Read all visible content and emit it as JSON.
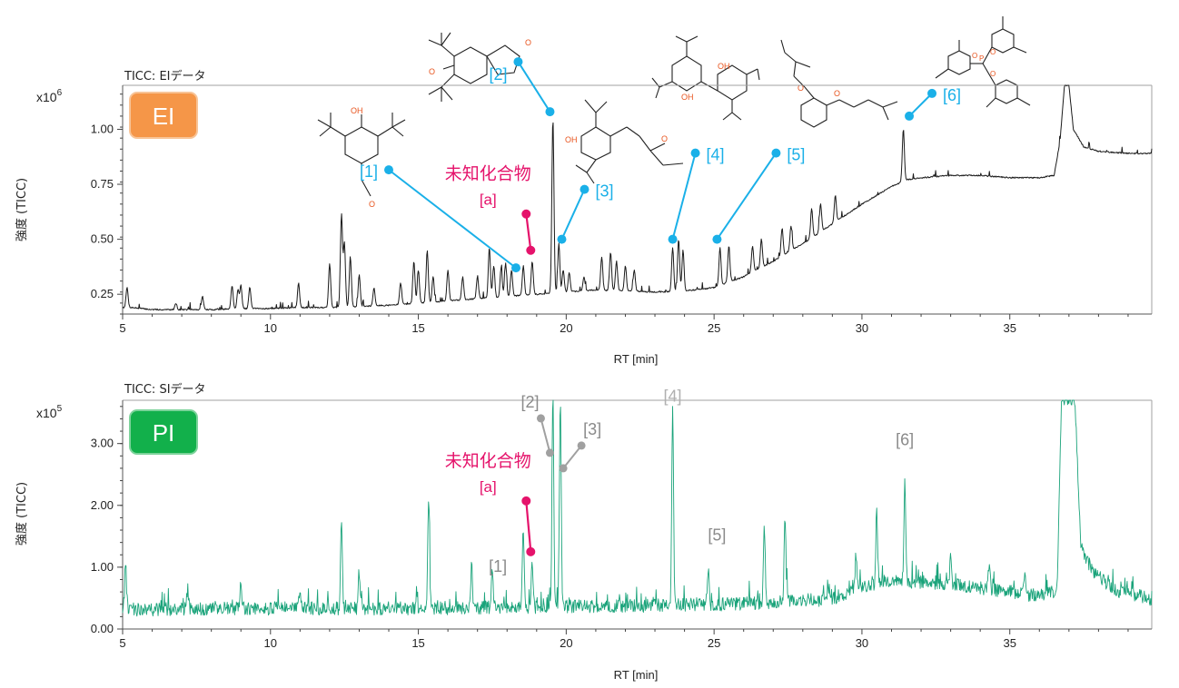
{
  "colors": {
    "ei_trace": "#1a1a1a",
    "pi_trace": "#1aa37a",
    "ei_badge": "#f59648",
    "pi_badge": "#12b04b",
    "ei_marker": "#1ab0e8",
    "pi_marker": "#a0a0a0",
    "unknown": "#e5136b",
    "frame": "#a0a0a0",
    "molecule_bond": "#222222",
    "molecule_hetero": "#e8541e"
  },
  "chart_data": [
    {
      "type": "line",
      "panel": "EI",
      "title": "TICC: EIデータ",
      "badge": "EI",
      "xlabel": "RT [min]",
      "ylabel": "強度 (TICC)",
      "multiplier_base": "x10",
      "multiplier_exp": "6",
      "xlim": [
        5,
        39.8
      ],
      "ylim": [
        0.16,
        1.2
      ],
      "xticks": [
        "5",
        "10",
        "15",
        "20",
        "25",
        "30",
        "35"
      ],
      "yticks": [
        "0.25",
        "0.50",
        "0.75",
        "1.00"
      ],
      "ytick_values": [
        0.25,
        0.5,
        0.75,
        1.0
      ],
      "baseline": [
        [
          5.0,
          0.19
        ],
        [
          5.3,
          0.19
        ],
        [
          6,
          0.18
        ],
        [
          7,
          0.18
        ],
        [
          8,
          0.18
        ],
        [
          9,
          0.185
        ],
        [
          10,
          0.185
        ],
        [
          11,
          0.19
        ],
        [
          12,
          0.19
        ],
        [
          13,
          0.195
        ],
        [
          14,
          0.2
        ],
        [
          15,
          0.21
        ],
        [
          16,
          0.22
        ],
        [
          17,
          0.23
        ],
        [
          18,
          0.24
        ],
        [
          19,
          0.25
        ],
        [
          20,
          0.26
        ],
        [
          21,
          0.27
        ],
        [
          22,
          0.265
        ],
        [
          23,
          0.26
        ],
        [
          24,
          0.265
        ],
        [
          25,
          0.28
        ],
        [
          26,
          0.33
        ],
        [
          27,
          0.4
        ],
        [
          28,
          0.48
        ],
        [
          29,
          0.57
        ],
        [
          30,
          0.66
        ],
        [
          30.5,
          0.7
        ],
        [
          31,
          0.74
        ],
        [
          31.5,
          0.77
        ],
        [
          32,
          0.78
        ],
        [
          33,
          0.79
        ],
        [
          34,
          0.79
        ],
        [
          35,
          0.78
        ],
        [
          36,
          0.78
        ],
        [
          36.5,
          0.79
        ],
        [
          36.7,
          0.95
        ],
        [
          36.85,
          1.2
        ],
        [
          37.0,
          1.2
        ],
        [
          37.15,
          1.0
        ],
        [
          37.5,
          0.92
        ],
        [
          38,
          0.9
        ],
        [
          39,
          0.89
        ],
        [
          39.8,
          0.89
        ]
      ],
      "peaks": [
        [
          5.15,
          0.28
        ],
        [
          6.8,
          0.21
        ],
        [
          7.7,
          0.24
        ],
        [
          8.7,
          0.29
        ],
        [
          8.9,
          0.27
        ],
        [
          9.0,
          0.29
        ],
        [
          9.3,
          0.28
        ],
        [
          10.95,
          0.3
        ],
        [
          12.0,
          0.39
        ],
        [
          12.4,
          0.61
        ],
        [
          12.5,
          0.48
        ],
        [
          12.7,
          0.42
        ],
        [
          13.0,
          0.34
        ],
        [
          13.5,
          0.28
        ],
        [
          14.4,
          0.3
        ],
        [
          14.85,
          0.4
        ],
        [
          15.0,
          0.36
        ],
        [
          15.3,
          0.45
        ],
        [
          15.5,
          0.33
        ],
        [
          16.0,
          0.36
        ],
        [
          16.5,
          0.33
        ],
        [
          17.0,
          0.33
        ],
        [
          17.4,
          0.46
        ],
        [
          17.55,
          0.38
        ],
        [
          17.8,
          0.37
        ],
        [
          17.95,
          0.39
        ],
        [
          18.15,
          0.36
        ],
        [
          18.55,
          0.38
        ],
        [
          18.85,
          0.4
        ],
        [
          19.55,
          1.05
        ],
        [
          19.75,
          0.48
        ],
        [
          19.9,
          0.36
        ],
        [
          20.1,
          0.35
        ],
        [
          20.6,
          0.33
        ],
        [
          21.2,
          0.42
        ],
        [
          21.5,
          0.44
        ],
        [
          21.7,
          0.4
        ],
        [
          22.0,
          0.38
        ],
        [
          22.3,
          0.36
        ],
        [
          23.6,
          0.46
        ],
        [
          23.8,
          0.5
        ],
        [
          23.95,
          0.45
        ],
        [
          25.2,
          0.46
        ],
        [
          25.5,
          0.47
        ],
        [
          26.3,
          0.47
        ],
        [
          26.6,
          0.5
        ],
        [
          27.3,
          0.55
        ],
        [
          27.6,
          0.56
        ],
        [
          28.3,
          0.64
        ],
        [
          28.6,
          0.66
        ],
        [
          29.1,
          0.7
        ],
        [
          31.4,
          1.0
        ]
      ],
      "annotations": [
        {
          "label": "[1]",
          "rt": 18.3,
          "int": 0.37
        },
        {
          "label": "[2]",
          "rt": 19.45,
          "int": 1.08
        },
        {
          "label": "[3]",
          "rt": 19.85,
          "int": 0.5
        },
        {
          "label": "[4]",
          "rt": 23.6,
          "int": 0.5
        },
        {
          "label": "[5]",
          "rt": 25.1,
          "int": 0.5
        },
        {
          "label": "[6]",
          "rt": 31.6,
          "int": 1.06
        }
      ],
      "unknown": {
        "name": "未知化合物",
        "id": "[a]",
        "rt": 18.8,
        "int": 0.45
      }
    },
    {
      "type": "line",
      "panel": "PI",
      "title": "TICC: SIデータ",
      "badge": "PI",
      "xlabel": "RT [min]",
      "ylabel": "強度 (TICC)",
      "multiplier_base": "x10",
      "multiplier_exp": "5",
      "xlim": [
        5,
        39.8
      ],
      "ylim": [
        0,
        3.7
      ],
      "xticks": [
        "5",
        "10",
        "15",
        "20",
        "25",
        "30",
        "35"
      ],
      "yticks": [
        "0.00",
        "1.00",
        "2.00",
        "3.00"
      ],
      "ytick_values": [
        0,
        1,
        2,
        3
      ],
      "baseline": [
        [
          5,
          0.28
        ],
        [
          10,
          0.3
        ],
        [
          15,
          0.3
        ],
        [
          20,
          0.33
        ],
        [
          25,
          0.36
        ],
        [
          29,
          0.45
        ],
        [
          30,
          0.65
        ],
        [
          31,
          0.75
        ],
        [
          33,
          0.7
        ],
        [
          36,
          0.5
        ],
        [
          36.6,
          0.6
        ],
        [
          36.75,
          3.7
        ],
        [
          37.2,
          3.7
        ],
        [
          37.4,
          1.3
        ],
        [
          37.8,
          0.9
        ],
        [
          38.5,
          0.6
        ],
        [
          39.8,
          0.45
        ]
      ],
      "peaks": [
        [
          5.1,
          1.0
        ],
        [
          7.2,
          0.6
        ],
        [
          9.0,
          0.7
        ],
        [
          11.0,
          0.6
        ],
        [
          12.4,
          1.8
        ],
        [
          13.0,
          0.9
        ],
        [
          15.35,
          2.12
        ],
        [
          16.8,
          1.0
        ],
        [
          17.5,
          0.9
        ],
        [
          18.55,
          1.6
        ],
        [
          18.85,
          1.1
        ],
        [
          19.55,
          3.7
        ],
        [
          19.8,
          3.7
        ],
        [
          23.6,
          3.5
        ],
        [
          24.8,
          0.95
        ],
        [
          26.7,
          1.6
        ],
        [
          27.4,
          1.8
        ],
        [
          29.8,
          1.2
        ],
        [
          30.5,
          1.9
        ],
        [
          31.45,
          2.42
        ],
        [
          33.0,
          1.1
        ],
        [
          34.3,
          1.0
        ],
        [
          35.5,
          0.9
        ]
      ],
      "annotations": [
        {
          "label": "[1]",
          "rt": 18.55,
          "int": 1.1,
          "style": "text"
        },
        {
          "label": "[2]",
          "rt": 19.45,
          "int": 2.85,
          "style": "leader"
        },
        {
          "label": "[3]",
          "rt": 19.9,
          "int": 2.6,
          "style": "leader"
        },
        {
          "label": "[4]",
          "rt": 23.6,
          "int": 3.65,
          "style": "text"
        },
        {
          "label": "[5]",
          "rt": 25.1,
          "int": 0.96,
          "style": "text"
        },
        {
          "label": "[6]",
          "rt": 31.45,
          "int": 2.5,
          "style": "text"
        }
      ],
      "unknown": {
        "name": "未知化合物",
        "id": "[a]",
        "rt": 18.8,
        "int": 1.25
      }
    }
  ],
  "structures": {
    "heteroatom_labels": [
      "OH",
      "O",
      "O",
      "O",
      "OH",
      "O",
      "OH",
      "OH",
      "O",
      "O",
      "P",
      "O",
      "O",
      "O"
    ]
  }
}
